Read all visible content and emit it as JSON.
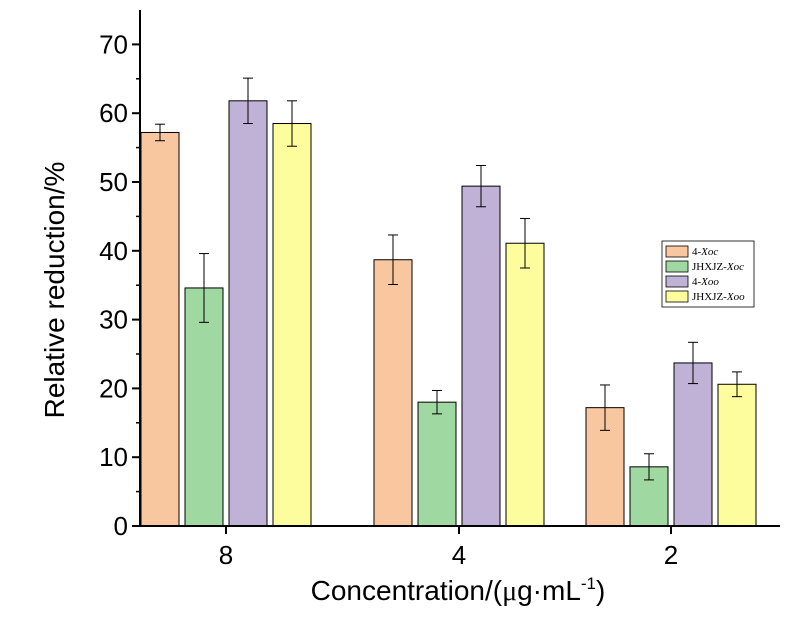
{
  "chart_data": {
    "type": "bar",
    "categories": [
      "8",
      "4",
      "2"
    ],
    "series": [
      {
        "name": "4-Xoc",
        "prefix": "4-",
        "italic": "Xoc",
        "color": "#f9c79f",
        "values": [
          57.2,
          38.7,
          17.2
        ],
        "errors": [
          1.2,
          3.6,
          3.3
        ]
      },
      {
        "name": "JHXJZ-Xoc",
        "prefix": "JHXJZ-",
        "italic": "Xoc",
        "color": "#9fd8a0",
        "values": [
          34.6,
          18.0,
          8.6
        ],
        "errors": [
          5.0,
          1.7,
          1.9
        ]
      },
      {
        "name": "4-Xoo",
        "prefix": "4-",
        "italic": "Xoo",
        "color": "#c0b1d6",
        "values": [
          61.8,
          49.4,
          23.7
        ],
        "errors": [
          3.3,
          3.0,
          3.0
        ]
      },
      {
        "name": "JHXJZ-Xoo",
        "prefix": "JHXJZ-",
        "italic": "Xoo",
        "color": "#fdfd9e",
        "values": [
          58.5,
          41.1,
          20.6
        ],
        "errors": [
          3.3,
          3.6,
          1.8
        ]
      }
    ],
    "title": "",
    "xlabel_prefix": "Concentration/(",
    "xlabel_mu": "μ",
    "xlabel_mid": "g·mL",
    "xlabel_sup": "-1",
    "xlabel_suffix": ")",
    "ylabel": "Relative reduction/%",
    "ylim": [
      0,
      75
    ],
    "yticks": [
      "0",
      "10",
      "20",
      "30",
      "40",
      "50",
      "60",
      "70"
    ],
    "legend_position": "right",
    "grid": false
  }
}
